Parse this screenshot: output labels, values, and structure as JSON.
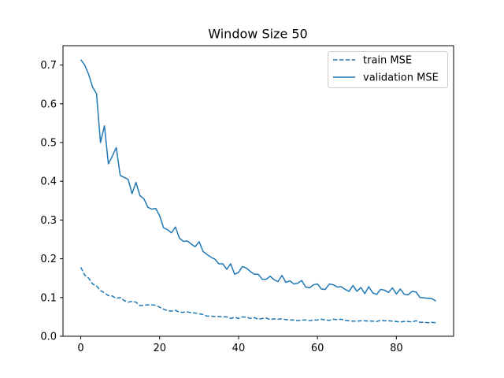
{
  "chart_data": {
    "type": "line",
    "title": "Window Size 50",
    "xlabel": "",
    "ylabel": "",
    "xlim": [
      -4.5,
      94.5
    ],
    "ylim": [
      0.0,
      0.75
    ],
    "xticks": [
      0,
      20,
      40,
      60,
      80
    ],
    "yticks": [
      0.0,
      0.1,
      0.2,
      0.3,
      0.4,
      0.5,
      0.6,
      0.7
    ],
    "ytick_labels": [
      "0.0",
      "0.1",
      "0.2",
      "0.3",
      "0.4",
      "0.5",
      "0.6",
      "0.7"
    ],
    "grid": false,
    "legend_position": "top-right",
    "colors": {
      "series": "#1f77b4",
      "axes": "#000000",
      "background": "#ffffff"
    },
    "series": [
      {
        "name": "train MSE",
        "style": "dashed",
        "x": [
          0,
          1,
          2,
          3,
          4,
          5,
          6,
          7,
          8,
          9,
          10,
          11,
          12,
          13,
          14,
          15,
          16,
          17,
          18,
          19,
          20,
          21,
          22,
          23,
          24,
          25,
          26,
          27,
          28,
          29,
          30,
          31,
          32,
          33,
          34,
          35,
          36,
          37,
          38,
          39,
          40,
          41,
          42,
          43,
          44,
          45,
          46,
          47,
          48,
          49,
          50,
          51,
          52,
          53,
          54,
          55,
          56,
          57,
          58,
          59,
          60,
          61,
          62,
          63,
          64,
          65,
          66,
          67,
          68,
          69,
          70,
          71,
          72,
          73,
          74,
          75,
          76,
          77,
          78,
          79,
          80,
          81,
          82,
          83,
          84,
          85,
          86,
          87,
          88,
          89,
          90
        ],
        "values": [
          0.178,
          0.158,
          0.15,
          0.135,
          0.13,
          0.118,
          0.112,
          0.105,
          0.104,
          0.098,
          0.1,
          0.092,
          0.088,
          0.09,
          0.088,
          0.079,
          0.08,
          0.081,
          0.081,
          0.08,
          0.075,
          0.07,
          0.066,
          0.065,
          0.067,
          0.062,
          0.062,
          0.063,
          0.061,
          0.06,
          0.058,
          0.056,
          0.052,
          0.052,
          0.051,
          0.051,
          0.05,
          0.05,
          0.046,
          0.049,
          0.046,
          0.05,
          0.049,
          0.046,
          0.048,
          0.044,
          0.046,
          0.047,
          0.043,
          0.045,
          0.044,
          0.045,
          0.043,
          0.042,
          0.042,
          0.04,
          0.042,
          0.042,
          0.04,
          0.042,
          0.042,
          0.044,
          0.042,
          0.041,
          0.044,
          0.043,
          0.044,
          0.041,
          0.04,
          0.039,
          0.039,
          0.04,
          0.04,
          0.039,
          0.039,
          0.038,
          0.041,
          0.04,
          0.04,
          0.039,
          0.038,
          0.037,
          0.038,
          0.038,
          0.037,
          0.04,
          0.036,
          0.036,
          0.035,
          0.036,
          0.035
        ]
      },
      {
        "name": "validation MSE",
        "style": "solid",
        "x": [
          0,
          1,
          2,
          3,
          4,
          5,
          6,
          7,
          8,
          9,
          10,
          11,
          12,
          13,
          14,
          15,
          16,
          17,
          18,
          19,
          20,
          21,
          22,
          23,
          24,
          25,
          26,
          27,
          28,
          29,
          30,
          31,
          32,
          33,
          34,
          35,
          36,
          37,
          38,
          39,
          40,
          41,
          42,
          43,
          44,
          45,
          46,
          47,
          48,
          49,
          50,
          51,
          52,
          53,
          54,
          55,
          56,
          57,
          58,
          59,
          60,
          61,
          62,
          63,
          64,
          65,
          66,
          67,
          68,
          69,
          70,
          71,
          72,
          73,
          74,
          75,
          76,
          77,
          78,
          79,
          80,
          81,
          82,
          83,
          84,
          85,
          86,
          87,
          88,
          89,
          90
        ],
        "values": [
          0.714,
          0.7,
          0.676,
          0.643,
          0.626,
          0.5,
          0.543,
          0.445,
          0.465,
          0.487,
          0.415,
          0.41,
          0.405,
          0.368,
          0.397,
          0.363,
          0.355,
          0.333,
          0.328,
          0.33,
          0.311,
          0.28,
          0.275,
          0.267,
          0.282,
          0.253,
          0.245,
          0.246,
          0.238,
          0.231,
          0.244,
          0.219,
          0.211,
          0.204,
          0.199,
          0.187,
          0.187,
          0.173,
          0.187,
          0.16,
          0.165,
          0.18,
          0.176,
          0.167,
          0.16,
          0.16,
          0.147,
          0.147,
          0.155,
          0.146,
          0.141,
          0.157,
          0.139,
          0.143,
          0.135,
          0.137,
          0.144,
          0.127,
          0.125,
          0.133,
          0.135,
          0.122,
          0.121,
          0.135,
          0.133,
          0.127,
          0.128,
          0.121,
          0.116,
          0.131,
          0.116,
          0.126,
          0.11,
          0.128,
          0.112,
          0.108,
          0.121,
          0.119,
          0.113,
          0.125,
          0.109,
          0.122,
          0.108,
          0.107,
          0.116,
          0.114,
          0.1,
          0.099,
          0.098,
          0.097,
          0.091
        ]
      }
    ]
  }
}
